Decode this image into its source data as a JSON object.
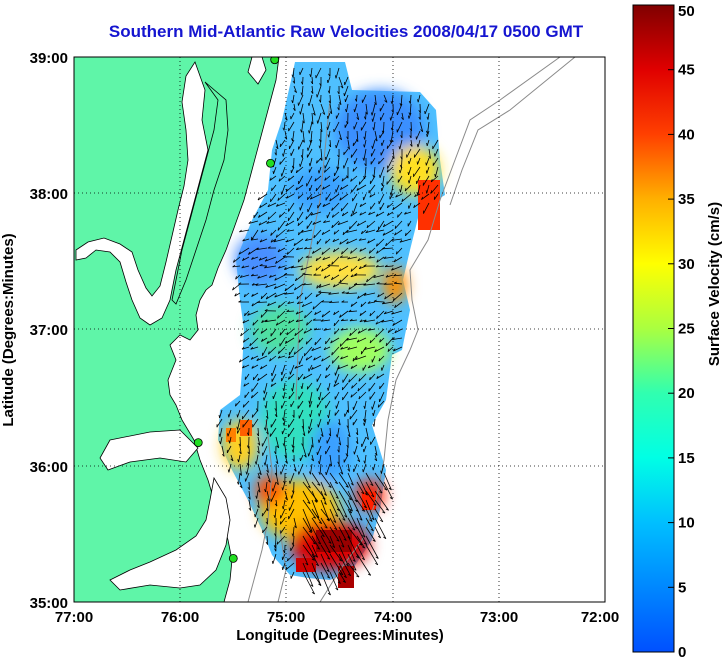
{
  "title": "Southern Mid-Atlantic Raw Velocities 2008/04/17 0500 GMT",
  "xlabel": "Longitude (Degrees:Minutes)",
  "ylabel": "Latitude (Degrees:Minutes)",
  "colorbar": {
    "label": "Surface Velocity (cm/s)",
    "range": [
      0,
      50
    ],
    "ticks": [
      "0",
      "5",
      "10",
      "15",
      "20",
      "25",
      "30",
      "35",
      "40",
      "45",
      "50"
    ]
  },
  "axes": {
    "lon_range": [
      -77,
      -72
    ],
    "lat_range": [
      35,
      39
    ],
    "x_ticks": [
      "77:00",
      "76:00",
      "75:00",
      "74:00",
      "73:00",
      "72:00"
    ],
    "y_ticks": [
      "35:00",
      "36:00",
      "37:00",
      "38:00",
      "39:00"
    ],
    "grid": "dotted"
  },
  "colors": {
    "land": "#5ff5a8",
    "title": "#1515d0",
    "coast": "#000000",
    "bathymetry": "#8a8a8a"
  },
  "stations": [
    {
      "lon": -75.11,
      "lat": 38.98
    },
    {
      "lon": -75.15,
      "lat": 38.22
    },
    {
      "lon": -75.83,
      "lat": 36.17
    },
    {
      "lon": -75.5,
      "lat": 35.32
    }
  ]
}
